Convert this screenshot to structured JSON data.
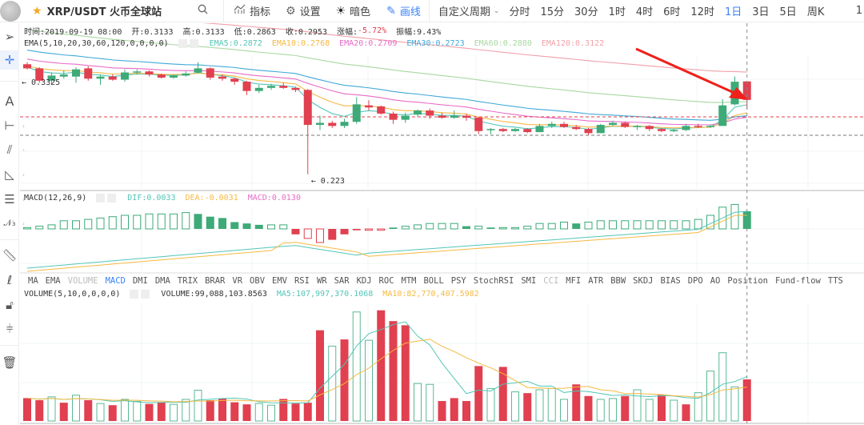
{
  "topbar": {
    "pair": "XRP/USDT 火币全球站",
    "indicators_label": "指标",
    "settings_label": "设置",
    "dark_label": "暗色",
    "draw_label": "画线",
    "custom_period_label": "自定义周期",
    "periods": [
      "分时",
      "15分",
      "30分",
      "1时",
      "4时",
      "6时",
      "12时",
      "1日",
      "3日",
      "5日",
      "周K"
    ],
    "active_period": "1日",
    "overflow_char": "1"
  },
  "ohlc_bar": {
    "time": "时间:2019-09-19 08:00",
    "open": "开:0.3133",
    "high": "高:0.3133",
    "low": "低:0.2863",
    "close": "收:0.2953",
    "change_label": "涨幅:",
    "change_value": "-5.72%",
    "amplitude": "振幅:9.43%"
  },
  "ema_legend": {
    "title": "EMA(5,10,20,30,60,120,0,0,0,0)",
    "items": [
      {
        "label": "EMA5:0.2872",
        "color": "#52c6b8"
      },
      {
        "label": "EMA10:0.2768",
        "color": "#f5b942"
      },
      {
        "label": "EMA20:0.2709",
        "color": "#e76bc7"
      },
      {
        "label": "EMA30:0.2723",
        "color": "#3fa9d8"
      },
      {
        "label": "EMA60:0.2880",
        "color": "#a8d8a0"
      },
      {
        "label": "EMA120:0.3122",
        "color": "#f0a0a8"
      }
    ]
  },
  "price_annotations": {
    "high": "← 0.3325",
    "low": "← 0.223"
  },
  "macd_legend": {
    "title": "MACD(12,26,9)",
    "items": [
      {
        "label": "DIF:0.0033",
        "color": "#52c6b8"
      },
      {
        "label": "DEA:-0.0031",
        "color": "#f5b942"
      },
      {
        "label": "MACD:0.0130",
        "color": "#e76bc7"
      }
    ]
  },
  "indicator_tabs": {
    "items": [
      "MA",
      "EMA",
      "VOLUME",
      "MACD",
      "DMI",
      "DMA",
      "TRIX",
      "BRAR",
      "VR",
      "OBV",
      "EMV",
      "RSI",
      "WR",
      "SAR",
      "KDJ",
      "ROC",
      "MTM",
      "BOLL",
      "PSY",
      "StochRSI",
      "SMI",
      "CCI",
      "MFI",
      "ATR",
      "BBW",
      "SKDJ",
      "BIAS",
      "DPO",
      "AO",
      "Position",
      "Fund-flow",
      "TTS"
    ],
    "active": "MACD",
    "disabled": [
      "VOLUME",
      "CCI"
    ]
  },
  "volume_legend": {
    "title": "VOLUME(5,10,0,0,0,0)",
    "items": [
      {
        "label": "VOLUME:99,088,103.8563",
        "color": "#333333"
      },
      {
        "label": "MA5:107,997,370.1068",
        "color": "#52c6b8"
      },
      {
        "label": "MA10:82,770,407.5982",
        "color": "#f5b942"
      }
    ]
  },
  "colors": {
    "up": "#3daa78",
    "down": "#e0404f",
    "accent": "#3b82f6",
    "arrow": "#f0201a"
  },
  "chart_data": {
    "type": "candlestick",
    "pair": "XRP/USDT",
    "interval": "1D",
    "candles_ohlc": [
      [
        0.33,
        0.332,
        0.325,
        0.326
      ],
      [
        0.326,
        0.327,
        0.312,
        0.314
      ],
      [
        0.314,
        0.322,
        0.31,
        0.319
      ],
      [
        0.318,
        0.324,
        0.316,
        0.32
      ],
      [
        0.318,
        0.327,
        0.312,
        0.325
      ],
      [
        0.326,
        0.328,
        0.314,
        0.316
      ],
      [
        0.316,
        0.32,
        0.31,
        0.318
      ],
      [
        0.318,
        0.32,
        0.314,
        0.315
      ],
      [
        0.315,
        0.325,
        0.313,
        0.322
      ],
      [
        0.322,
        0.325,
        0.32,
        0.323
      ],
      [
        0.323,
        0.324,
        0.318,
        0.32
      ],
      [
        0.32,
        0.321,
        0.316,
        0.317
      ],
      [
        0.317,
        0.32,
        0.316,
        0.319
      ],
      [
        0.319,
        0.323,
        0.318,
        0.321
      ],
      [
        0.322,
        0.332,
        0.321,
        0.326
      ],
      [
        0.326,
        0.327,
        0.315,
        0.317
      ],
      [
        0.318,
        0.32,
        0.314,
        0.316
      ],
      [
        0.316,
        0.317,
        0.31,
        0.313
      ],
      [
        0.313,
        0.314,
        0.3,
        0.304
      ],
      [
        0.304,
        0.31,
        0.302,
        0.307
      ],
      [
        0.307,
        0.311,
        0.305,
        0.309
      ],
      [
        0.309,
        0.312,
        0.306,
        0.307
      ],
      [
        0.307,
        0.308,
        0.303,
        0.305
      ],
      [
        0.305,
        0.306,
        0.223,
        0.271
      ],
      [
        0.271,
        0.28,
        0.266,
        0.273
      ],
      [
        0.273,
        0.275,
        0.268,
        0.27
      ],
      [
        0.27,
        0.277,
        0.268,
        0.274
      ],
      [
        0.274,
        0.298,
        0.272,
        0.291
      ],
      [
        0.29,
        0.295,
        0.285,
        0.288
      ],
      [
        0.289,
        0.29,
        0.281,
        0.282
      ],
      [
        0.282,
        0.284,
        0.272,
        0.276
      ],
      [
        0.276,
        0.283,
        0.273,
        0.28
      ],
      [
        0.281,
        0.286,
        0.279,
        0.285
      ],
      [
        0.285,
        0.287,
        0.277,
        0.28
      ],
      [
        0.28,
        0.283,
        0.277,
        0.278
      ],
      [
        0.278,
        0.285,
        0.277,
        0.28
      ],
      [
        0.28,
        0.282,
        0.275,
        0.278
      ],
      [
        0.278,
        0.279,
        0.262,
        0.265
      ],
      [
        0.266,
        0.268,
        0.262,
        0.267
      ],
      [
        0.267,
        0.268,
        0.264,
        0.265
      ],
      [
        0.265,
        0.268,
        0.264,
        0.267
      ],
      [
        0.267,
        0.268,
        0.263,
        0.264
      ],
      [
        0.264,
        0.272,
        0.264,
        0.27
      ],
      [
        0.27,
        0.274,
        0.268,
        0.272
      ],
      [
        0.272,
        0.274,
        0.268,
        0.269
      ],
      [
        0.269,
        0.271,
        0.266,
        0.267
      ],
      [
        0.267,
        0.268,
        0.261,
        0.263
      ],
      [
        0.263,
        0.272,
        0.263,
        0.271
      ],
      [
        0.271,
        0.275,
        0.27,
        0.273
      ],
      [
        0.273,
        0.274,
        0.268,
        0.269
      ],
      [
        0.269,
        0.271,
        0.266,
        0.27
      ],
      [
        0.27,
        0.271,
        0.265,
        0.267
      ],
      [
        0.267,
        0.268,
        0.264,
        0.265
      ],
      [
        0.265,
        0.267,
        0.264,
        0.266
      ],
      [
        0.266,
        0.272,
        0.265,
        0.27
      ],
      [
        0.27,
        0.272,
        0.268,
        0.269
      ],
      [
        0.269,
        0.271,
        0.268,
        0.27
      ],
      [
        0.27,
        0.296,
        0.27,
        0.29
      ],
      [
        0.291,
        0.318,
        0.29,
        0.313
      ],
      [
        0.3133,
        0.3133,
        0.2863,
        0.2953
      ]
    ],
    "y_range": [
      0.215,
      0.345
    ],
    "dashed_price_lines": [
      0.2953,
      0.2863
    ],
    "volume": [
      55,
      50,
      58,
      44,
      62,
      50,
      42,
      38,
      52,
      47,
      41,
      45,
      40,
      52,
      74,
      50,
      54,
      45,
      40,
      42,
      38,
      53,
      42,
      44,
      218,
      180,
      196,
      262,
      194,
      266,
      240,
      230,
      90,
      88,
      48,
      55,
      48,
      132,
      78,
      130,
      70,
      67,
      75,
      78,
      52,
      88,
      60,
      52,
      54,
      60,
      75,
      52,
      63,
      50,
      40,
      68,
      120,
      164,
      82,
      100
    ],
    "volume_up": [
      false,
      false,
      true,
      false,
      true,
      false,
      true,
      false,
      true,
      true,
      false,
      false,
      true,
      true,
      true,
      false,
      false,
      false,
      false,
      true,
      true,
      false,
      false,
      false,
      false,
      true,
      false,
      true,
      true,
      false,
      false,
      false,
      true,
      true,
      false,
      false,
      false,
      false,
      true,
      false,
      true,
      false,
      true,
      true,
      true,
      false,
      false,
      true,
      true,
      false,
      true,
      true,
      false,
      true,
      false,
      true,
      true,
      true,
      true,
      false
    ],
    "macd_hist": [
      0.001,
      0.002,
      0.003,
      0.006,
      0.006,
      0.007,
      0.008,
      0.009,
      0.01,
      0.01,
      0.011,
      0.011,
      0.011,
      0.012,
      0.011,
      0.009,
      0.008,
      0.005,
      0.004,
      0.003,
      0.003,
      0.003,
      -0.004,
      -0.007,
      -0.01,
      -0.008,
      -0.004,
      -0.001,
      -0.001,
      -0.001,
      0.001,
      0.002,
      0.003,
      0.004,
      0.004,
      0.004,
      0.002,
      0.002,
      0.001,
      0.001,
      0.001,
      0.002,
      0.004,
      0.004,
      0.005,
      0.004,
      0.005,
      0.006,
      0.006,
      0.006,
      0.006,
      0.006,
      0.006,
      0.006,
      0.006,
      0.007,
      0.01,
      0.016,
      0.018,
      0.013
    ]
  }
}
